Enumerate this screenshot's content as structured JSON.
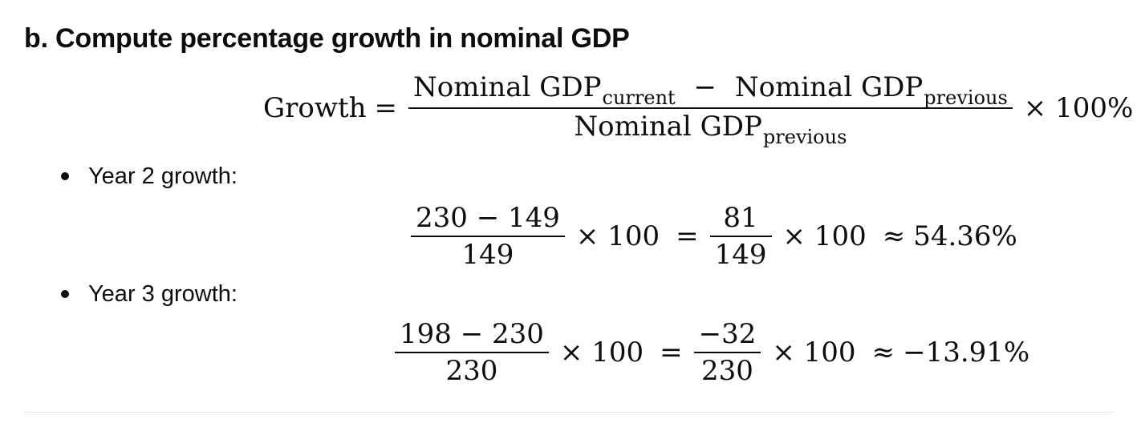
{
  "section": {
    "heading": "b. Compute percentage growth in nominal GDP"
  },
  "formula": {
    "lhs": "Growth",
    "equals": "=",
    "numerator": {
      "left_term": "Nominal GDP",
      "left_sub": "current",
      "minus": "−",
      "right_term": "Nominal GDP",
      "right_sub": "previous"
    },
    "denominator": {
      "term": "Nominal GDP",
      "sub": "previous"
    },
    "tail": "× 100%"
  },
  "items": [
    {
      "label": "Year 2 growth:",
      "frac1": {
        "num": "230 − 149",
        "den": "149"
      },
      "times1": "× 100",
      "equals": "=",
      "frac2": {
        "num": "81",
        "den": "149"
      },
      "times2": "× 100",
      "approx": "≈",
      "result": "54.36%"
    },
    {
      "label": "Year 3 growth:",
      "frac1": {
        "num": "198 − 230",
        "den": "230"
      },
      "times1": "× 100",
      "equals": "=",
      "frac2": {
        "num": "−32",
        "den": "230"
      },
      "times2": "× 100",
      "approx": "≈",
      "result": "−13.91%"
    }
  ]
}
